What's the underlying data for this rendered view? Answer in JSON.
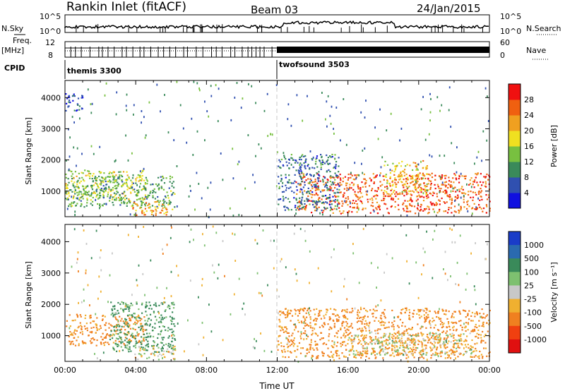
{
  "header": {
    "station": "Rankin Inlet (fitACF)",
    "beam": "Beam 03",
    "date": "24/Jan/2015"
  },
  "summary_panels": {
    "nsky": {
      "label": "N.Sky",
      "tick_top": "10^5",
      "tick_bottom": "10^0"
    },
    "nsearch": {
      "label": "N.Search",
      "tick_top": "10^5",
      "tick_bottom": "10^0"
    },
    "freq": {
      "label": "Freq.",
      "unit": "[MHz]",
      "tick_top": "12",
      "tick_bottom": "8"
    },
    "nave": {
      "label": "Nave",
      "tick_top": "60",
      "tick_bottom": "0"
    },
    "cpid": {
      "label": "CPID",
      "programs": [
        {
          "name": "themis 3300",
          "start_hour": 0
        },
        {
          "name": "twofsound 3503",
          "start_hour": 12
        }
      ]
    }
  },
  "chart_data": [
    {
      "type": "heatmap",
      "name": "power",
      "ylabel": "Slant Range [km]",
      "xlim_hours": [
        0,
        24
      ],
      "ylim_km": [
        180,
        4550
      ],
      "yticks": [
        "1000",
        "2000",
        "3000",
        "4000"
      ],
      "colorbar": {
        "label": "Power [dB]",
        "ticks": [
          "4",
          "8",
          "12",
          "16",
          "20",
          "24",
          "28"
        ],
        "vmin": 0,
        "vmax": 32
      },
      "regions": [
        {
          "t0": 0.0,
          "t1": 4.7,
          "r0": 700,
          "r1": 1700,
          "value": 16
        },
        {
          "t0": 0.0,
          "t1": 6.2,
          "r0": 500,
          "r1": 1500,
          "value": 12
        },
        {
          "t0": 3.8,
          "t1": 6.2,
          "r0": 250,
          "r1": 700,
          "value": 22
        },
        {
          "t0": 13.0,
          "t1": 24.0,
          "r0": 300,
          "r1": 1600,
          "value": 26
        },
        {
          "t0": 12.0,
          "t1": 15.5,
          "r0": 400,
          "r1": 2200,
          "value": 8
        },
        {
          "t0": 18.0,
          "t1": 20.5,
          "r0": 900,
          "r1": 2000,
          "value": 20
        },
        {
          "t0": 0.0,
          "t1": 1.0,
          "r0": 3600,
          "r1": 4200,
          "value": 6
        }
      ]
    },
    {
      "type": "heatmap",
      "name": "velocity",
      "ylabel": "Slant Range [km]",
      "xlabel": "Time UT",
      "xlim_hours": [
        0,
        24
      ],
      "ylim_km": [
        180,
        4550
      ],
      "yticks": [
        "1000",
        "2000",
        "3000",
        "4000"
      ],
      "xticks": [
        "00:00",
        "04:00",
        "08:00",
        "12:00",
        "16:00",
        "20:00",
        "00:00"
      ],
      "colorbar": {
        "label": "Velocity [m s⁻¹]",
        "ticks": [
          "1000",
          "500",
          "100",
          "25",
          "-25",
          "-100",
          "-500",
          "-1000"
        ]
      },
      "regions": [
        {
          "t0": 0.0,
          "t1": 4.5,
          "r0": 700,
          "r1": 1700,
          "value": -150
        },
        {
          "t0": 2.5,
          "t1": 6.2,
          "r0": 500,
          "r1": 2100,
          "value": 150
        },
        {
          "t0": 3.8,
          "t1": 6.2,
          "r0": 250,
          "r1": 700,
          "value": 0
        },
        {
          "t0": 12.0,
          "t1": 24.0,
          "r0": 300,
          "r1": 1900,
          "value": -150
        },
        {
          "t0": 16.0,
          "t1": 23.0,
          "r0": 400,
          "r1": 1100,
          "value": 0
        }
      ]
    }
  ]
}
